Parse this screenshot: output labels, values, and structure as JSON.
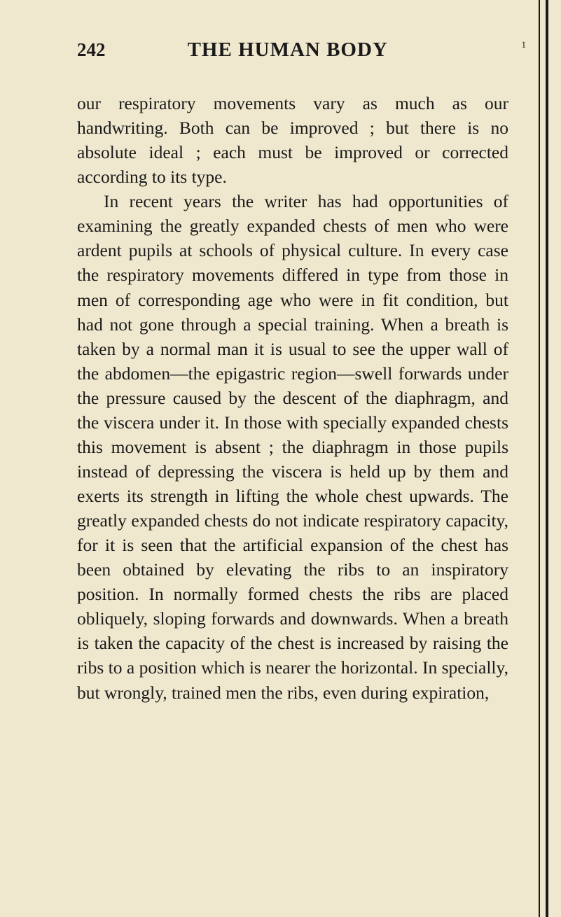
{
  "page": {
    "number": "242",
    "title": "THE HUMAN BODY",
    "superscript": "1"
  },
  "paragraphs": [
    {
      "text": "our respiratory movements vary as much as our handwriting. Both can be improved ; but there is no absolute ideal ; each must be improved or corrected according to its type.",
      "indented": false
    },
    {
      "text": "In recent years the writer has had opportunities of examining the greatly expanded chests of men who were ardent pupils at schools of physical culture. In every case the respiratory movements differed in type from those in men of corresponding age who were in fit condition, but had not gone through a special training. When a breath is taken by a normal man it is usual to see the upper wall of the abdomen—the epigastric region—swell forwards under the pressure caused by the descent of the diaphragm, and the viscera under it. In those with specially expanded chests this movement is absent ; the diaphragm in those pupils instead of depressing the viscera is held up by them and exerts its strength in lifting the whole chest upwards. The greatly expanded chests do not indicate respiratory capacity, for it is seen that the artificial expansion of the chest has been obtained by elevating the ribs to an inspiratory position. In normally formed chests the ribs are placed obliquely, sloping forwards and downwards. When a breath is taken the capacity of the chest is increased by raising the ribs to a position which is nearer the horizontal. In specially, but wrongly, trained men the ribs, even during expiration,",
      "indented": true
    }
  ],
  "colors": {
    "background": "#f0e8ce",
    "text": "#1a1a1a",
    "border": "#1a1a1a"
  },
  "typography": {
    "header_fontsize": 29,
    "pagenum_fontsize": 27,
    "body_fontsize": 25.5,
    "line_height": 1.375
  }
}
